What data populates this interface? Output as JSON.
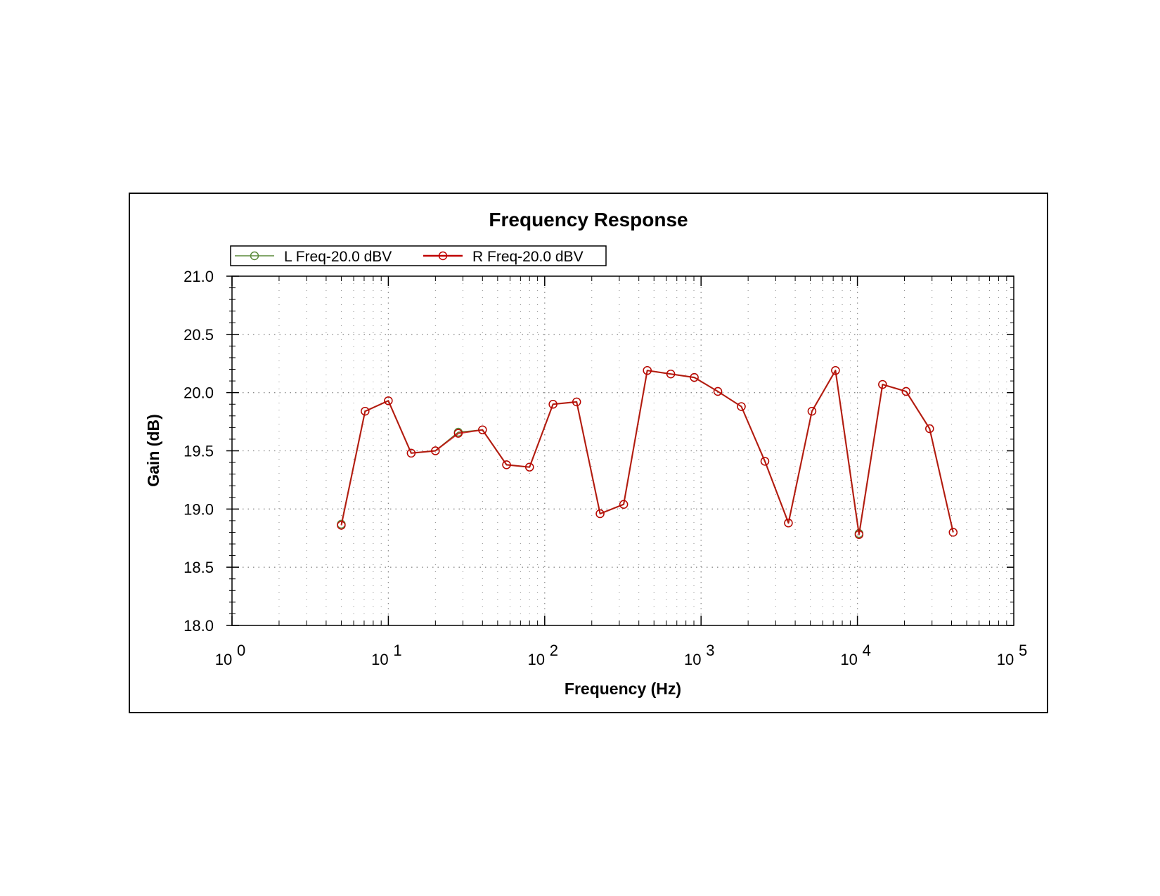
{
  "colors": {
    "left_series": "#5a8a3a",
    "right_series": "#c00000",
    "grid": "#8c8c8c",
    "axis": "#000000",
    "background": "#ffffff"
  },
  "chart_data": {
    "type": "line",
    "title": "Frequency Response",
    "xlabel": "Frequency (Hz)",
    "ylabel": "Gain (dB)",
    "xscale": "log",
    "xlim": [
      1,
      100000
    ],
    "ylim": [
      18.0,
      21.0
    ],
    "grid": true,
    "legend_position": "top-left",
    "x_ticks": [
      {
        "base": "10",
        "exp": "0"
      },
      {
        "base": "10",
        "exp": "1"
      },
      {
        "base": "10",
        "exp": "2"
      },
      {
        "base": "10",
        "exp": "3"
      },
      {
        "base": "10",
        "exp": "4"
      },
      {
        "base": "10",
        "exp": "5"
      }
    ],
    "y_ticks": [
      "18.0",
      "18.5",
      "19.0",
      "19.5",
      "20.0",
      "20.5",
      "21.0"
    ],
    "x": [
      5,
      7.1,
      10,
      14,
      20,
      28,
      40,
      57,
      80,
      113,
      160,
      226,
      320,
      453,
      640,
      905,
      1280,
      1810,
      2560,
      3620,
      5120,
      7240,
      10240,
      14480,
      20480,
      28960,
      40960
    ],
    "series": [
      {
        "name": "L Freq-20.0 dBV",
        "color": "#5a8a3a",
        "values": [
          18.87,
          19.84,
          19.93,
          19.48,
          19.5,
          19.66,
          19.68,
          19.38,
          19.36,
          19.9,
          19.92,
          18.96,
          19.04,
          20.19,
          20.16,
          20.13,
          20.01,
          19.88,
          19.41,
          18.88,
          19.84,
          20.19,
          18.79,
          20.07,
          20.01,
          19.69,
          18.8
        ]
      },
      {
        "name": "R Freq-20.0 dBV",
        "color": "#c00000",
        "values": [
          18.86,
          19.84,
          19.93,
          19.48,
          19.5,
          19.65,
          19.68,
          19.38,
          19.36,
          19.9,
          19.92,
          18.96,
          19.04,
          20.19,
          20.16,
          20.13,
          20.01,
          19.88,
          19.41,
          18.88,
          19.84,
          20.19,
          18.78,
          20.07,
          20.01,
          19.69,
          18.8
        ]
      }
    ]
  }
}
